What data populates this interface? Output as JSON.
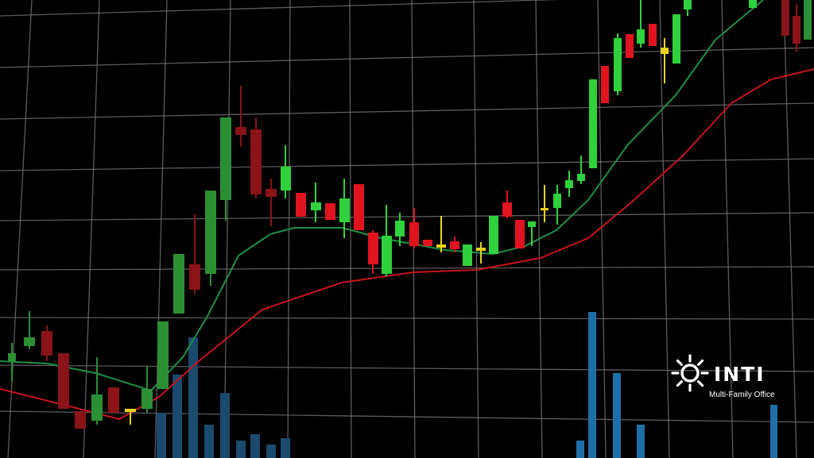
{
  "logo": {
    "name": "INTI",
    "tagline": "Multi-Family Office"
  }
}
